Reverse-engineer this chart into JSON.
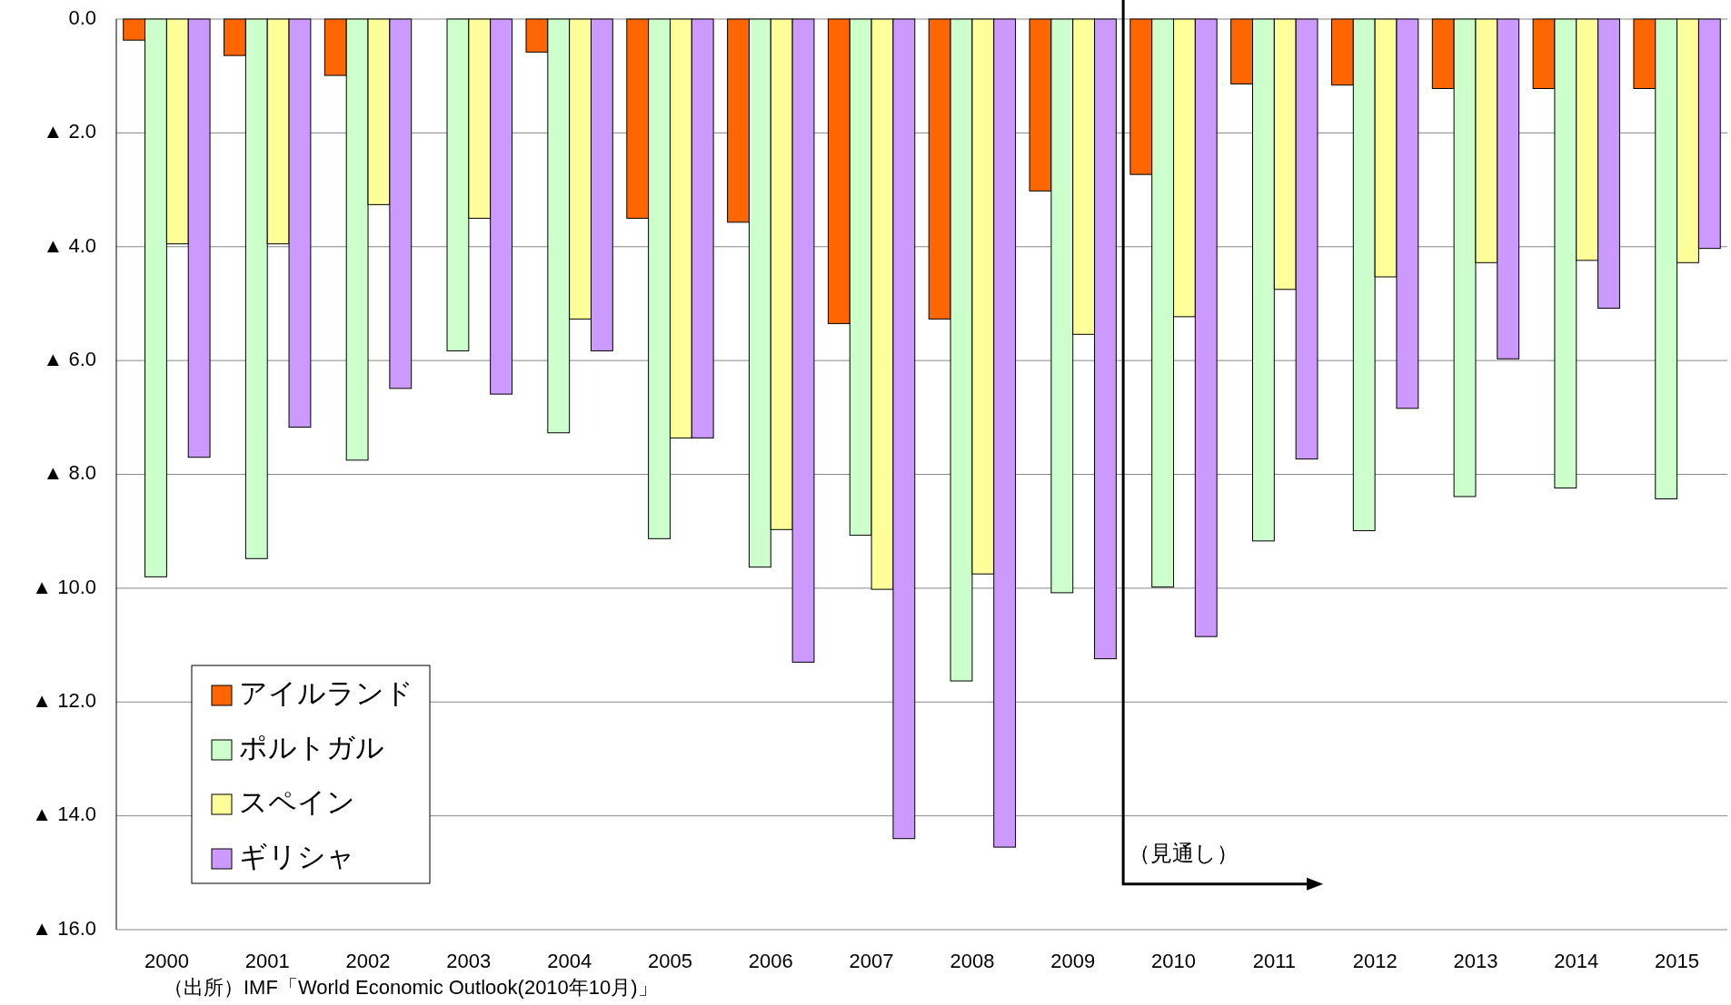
{
  "chart_data": {
    "type": "bar",
    "categories": [
      "2000",
      "2001",
      "2002",
      "2003",
      "2004",
      "2005",
      "2006",
      "2007",
      "2008",
      "2009",
      "2010",
      "2011",
      "2012",
      "2013",
      "2014",
      "2015"
    ],
    "series": [
      {
        "name": "アイルランド",
        "color": "#ff6600",
        "values": [
          -0.37,
          -0.64,
          -0.99,
          null,
          -0.58,
          -3.5,
          -3.57,
          -5.35,
          -5.27,
          -3.02,
          -2.73,
          -1.14,
          -1.16,
          -1.22,
          -1.22,
          -1.22
        ]
      },
      {
        "name": "ポルトガル",
        "color": "#ccffcc",
        "values": [
          -9.8,
          -9.48,
          -7.75,
          -5.83,
          -7.27,
          -9.13,
          -9.63,
          -9.07,
          -11.63,
          -10.08,
          -9.98,
          -9.17,
          -8.99,
          -8.39,
          -8.24,
          -8.43
        ]
      },
      {
        "name": "スペイン",
        "color": "#ffff99",
        "values": [
          -3.95,
          -3.95,
          -3.26,
          -3.5,
          -5.27,
          -7.36,
          -8.97,
          -10.02,
          -9.75,
          -5.54,
          -5.23,
          -4.75,
          -4.53,
          -4.28,
          -4.24,
          -4.28
        ]
      },
      {
        "name": "ギリシャ",
        "color": "#cc99ff",
        "values": [
          -7.7,
          -7.17,
          -6.49,
          -6.59,
          -5.83,
          -7.36,
          -11.3,
          -14.4,
          -14.55,
          -11.24,
          -10.85,
          -7.73,
          -6.84,
          -5.97,
          -5.08,
          -4.03
        ]
      }
    ],
    "ylim": [
      -16,
      0
    ],
    "yticks": [
      {
        "value": 0,
        "label": "0.0"
      },
      {
        "value": -2,
        "label": "▲ 2.0"
      },
      {
        "value": -4,
        "label": "▲ 4.0"
      },
      {
        "value": -6,
        "label": "▲ 6.0"
      },
      {
        "value": -8,
        "label": "▲ 8.0"
      },
      {
        "value": -10,
        "label": "▲ 10.0"
      },
      {
        "value": -12,
        "label": "▲ 12.0"
      },
      {
        "value": -14,
        "label": "▲ 14.0"
      },
      {
        "value": -16,
        "label": "▲ 16.0"
      }
    ],
    "grid": "y",
    "legend": "bottom left",
    "annotations": [
      "（見通し）",
      "（出所）IMF「World Economic Outlook(2010年10月)」"
    ]
  }
}
